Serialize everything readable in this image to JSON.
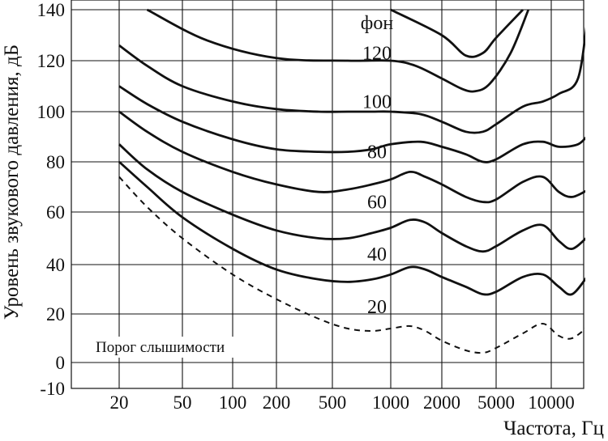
{
  "chart_data": {
    "type": "line",
    "x_scale": "log",
    "grid": true,
    "xlabel": "Частота, Гц",
    "ylabel": "Уровень звукового давления, дБ",
    "x_ticks": [
      {
        "value": 20,
        "label": "20"
      },
      {
        "value": 50,
        "label": "50"
      },
      {
        "value": 100,
        "label": "100"
      },
      {
        "value": 200,
        "label": "200"
      },
      {
        "value": 500,
        "label": "500"
      },
      {
        "value": 1000,
        "label": "1000"
      },
      {
        "value": 2000,
        "label": "2000"
      },
      {
        "value": 5000,
        "label": "5000"
      },
      {
        "value": 10000,
        "label": "10000"
      }
    ],
    "y_ticks": [
      140,
      120,
      100,
      80,
      60,
      40,
      20,
      0,
      -10
    ],
    "y_tick_labels": [
      "140",
      "120",
      "100",
      "80",
      "60",
      "40",
      "20",
      "0",
      "-10"
    ],
    "unit_label": "фон",
    "series": [
      {
        "name": "120",
        "style": "solid",
        "points": [
          [
            30,
            140
          ],
          [
            70,
            128
          ],
          [
            200,
            121
          ],
          [
            600,
            120
          ],
          [
            1000,
            120
          ],
          [
            1400,
            118
          ],
          [
            2000,
            113
          ],
          [
            2800,
            109
          ],
          [
            3500,
            108
          ],
          [
            4500,
            111
          ],
          [
            6000,
            123
          ],
          [
            7500,
            140
          ]
        ]
      },
      {
        "name": "100",
        "style": "solid",
        "points": [
          [
            1000,
            140
          ],
          [
            2000,
            130
          ],
          [
            3000,
            122
          ],
          [
            4000,
            123
          ],
          [
            5000,
            129
          ],
          [
            7000,
            140
          ]
        ]
      },
      {
        "name": "100",
        "style": "solid",
        "points": [
          [
            20,
            126
          ],
          [
            30,
            118
          ],
          [
            50,
            110
          ],
          [
            100,
            104
          ],
          [
            200,
            101
          ],
          [
            400,
            100
          ],
          [
            600,
            100
          ],
          [
            800,
            100
          ],
          [
            1000,
            100
          ],
          [
            1500,
            99
          ],
          [
            2000,
            96
          ],
          [
            3000,
            92
          ],
          [
            4000,
            92
          ],
          [
            5000,
            95
          ],
          [
            7000,
            102
          ],
          [
            9000,
            104
          ],
          [
            11000,
            107
          ],
          [
            14000,
            113
          ],
          [
            16000,
            139
          ],
          [
            17000,
            140
          ]
        ]
      },
      {
        "name": "80",
        "style": "solid",
        "points": [
          [
            20,
            110
          ],
          [
            30,
            103
          ],
          [
            50,
            96
          ],
          [
            100,
            89
          ],
          [
            200,
            85
          ],
          [
            400,
            84
          ],
          [
            600,
            84
          ],
          [
            800,
            85
          ],
          [
            1000,
            87
          ],
          [
            1500,
            88
          ],
          [
            2000,
            86
          ],
          [
            3000,
            83
          ],
          [
            4000,
            80
          ],
          [
            5000,
            81
          ],
          [
            7000,
            87
          ],
          [
            9000,
            88
          ],
          [
            11000,
            86
          ],
          [
            14000,
            87
          ],
          [
            16000,
            91
          ]
        ]
      },
      {
        "name": "60",
        "style": "solid",
        "points": [
          [
            20,
            100
          ],
          [
            30,
            92
          ],
          [
            50,
            84
          ],
          [
            100,
            76
          ],
          [
            200,
            71
          ],
          [
            400,
            68
          ],
          [
            600,
            69
          ],
          [
            800,
            71
          ],
          [
            1000,
            73
          ],
          [
            1300,
            76
          ],
          [
            1600,
            74
          ],
          [
            2000,
            71
          ],
          [
            3000,
            66
          ],
          [
            4000,
            64
          ],
          [
            5000,
            65
          ],
          [
            7000,
            72
          ],
          [
            9000,
            74
          ],
          [
            11000,
            68
          ],
          [
            13000,
            66
          ],
          [
            16000,
            69
          ]
        ]
      },
      {
        "name": "40",
        "style": "solid",
        "points": [
          [
            20,
            87
          ],
          [
            30,
            77
          ],
          [
            50,
            68
          ],
          [
            100,
            59
          ],
          [
            200,
            53
          ],
          [
            400,
            50
          ],
          [
            600,
            50
          ],
          [
            800,
            52
          ],
          [
            1000,
            54
          ],
          [
            1300,
            57
          ],
          [
            1600,
            56
          ],
          [
            2000,
            52
          ],
          [
            3000,
            47
          ],
          [
            4000,
            45
          ],
          [
            5000,
            47
          ],
          [
            7000,
            53
          ],
          [
            9000,
            55
          ],
          [
            11000,
            49
          ],
          [
            13000,
            46
          ],
          [
            16000,
            51
          ]
        ]
      },
      {
        "name": "20",
        "style": "solid",
        "points": [
          [
            20,
            80
          ],
          [
            30,
            70
          ],
          [
            50,
            58
          ],
          [
            100,
            46
          ],
          [
            200,
            38
          ],
          [
            400,
            34
          ],
          [
            600,
            33
          ],
          [
            800,
            34
          ],
          [
            1000,
            36
          ],
          [
            1300,
            39
          ],
          [
            1600,
            38
          ],
          [
            2000,
            35
          ],
          [
            3000,
            31
          ],
          [
            4000,
            28
          ],
          [
            5000,
            29
          ],
          [
            7000,
            35
          ],
          [
            9000,
            36
          ],
          [
            11000,
            31
          ],
          [
            13000,
            28
          ],
          [
            16000,
            36
          ]
        ]
      },
      {
        "name": "Порог слышимости",
        "style": "dashed",
        "points": [
          [
            20,
            74
          ],
          [
            30,
            62
          ],
          [
            50,
            50
          ],
          [
            100,
            36
          ],
          [
            200,
            26
          ],
          [
            400,
            18
          ],
          [
            600,
            14
          ],
          [
            800,
            13
          ],
          [
            1000,
            14
          ],
          [
            1300,
            15
          ],
          [
            1600,
            13
          ],
          [
            2000,
            9
          ],
          [
            3000,
            5
          ],
          [
            4000,
            4
          ],
          [
            5000,
            6
          ],
          [
            7000,
            12
          ],
          [
            9000,
            16
          ],
          [
            11000,
            11
          ],
          [
            13000,
            10
          ],
          [
            16000,
            15
          ]
        ]
      }
    ],
    "curve_labels": [
      {
        "text": "фон",
        "x": 1000,
        "y": 135
      },
      {
        "text": "120",
        "x": 1000,
        "y": 123
      },
      {
        "text": "100",
        "x": 1000,
        "y": 104
      },
      {
        "text": "80",
        "x": 1000,
        "y": 84
      },
      {
        "text": "60",
        "x": 1000,
        "y": 64
      },
      {
        "text": "40",
        "x": 1000,
        "y": 44
      },
      {
        "text": "20",
        "x": 1000,
        "y": 23
      },
      {
        "text": "Порог слышимости",
        "x": 100,
        "y": 7
      }
    ]
  }
}
